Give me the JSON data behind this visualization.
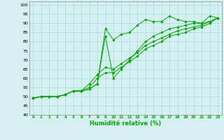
{
  "xlabel": "Humidité relative (%)",
  "ylabel": "",
  "bg_color": "#d4f0f0",
  "grid_color": "#b0d8d8",
  "line_color": "#00aa00",
  "xlim": [
    -0.5,
    23.5
  ],
  "ylim": [
    40,
    102
  ],
  "yticks": [
    40,
    45,
    50,
    55,
    60,
    65,
    70,
    75,
    80,
    85,
    90,
    95,
    100
  ],
  "xticks": [
    0,
    1,
    2,
    3,
    4,
    5,
    6,
    7,
    8,
    9,
    10,
    11,
    12,
    13,
    14,
    15,
    16,
    17,
    18,
    19,
    20,
    21,
    22,
    23
  ],
  "series": [
    [
      49,
      50,
      50,
      50,
      51,
      53,
      53,
      54,
      57,
      87,
      81,
      84,
      85,
      89,
      92,
      91,
      91,
      94,
      92,
      91,
      91,
      90,
      94,
      93
    ],
    [
      49,
      50,
      50,
      50,
      51,
      53,
      53,
      54,
      57,
      83,
      60,
      65,
      70,
      75,
      80,
      83,
      85,
      87,
      88,
      89,
      90,
      90,
      91,
      93
    ],
    [
      49,
      50,
      50,
      50,
      51,
      53,
      53,
      57,
      62,
      66,
      65,
      68,
      71,
      74,
      78,
      80,
      82,
      84,
      86,
      87,
      88,
      89,
      91,
      93
    ],
    [
      49,
      50,
      50,
      50,
      51,
      53,
      53,
      55,
      60,
      63,
      63,
      66,
      69,
      72,
      76,
      78,
      80,
      83,
      84,
      85,
      87,
      88,
      90,
      93
    ]
  ]
}
